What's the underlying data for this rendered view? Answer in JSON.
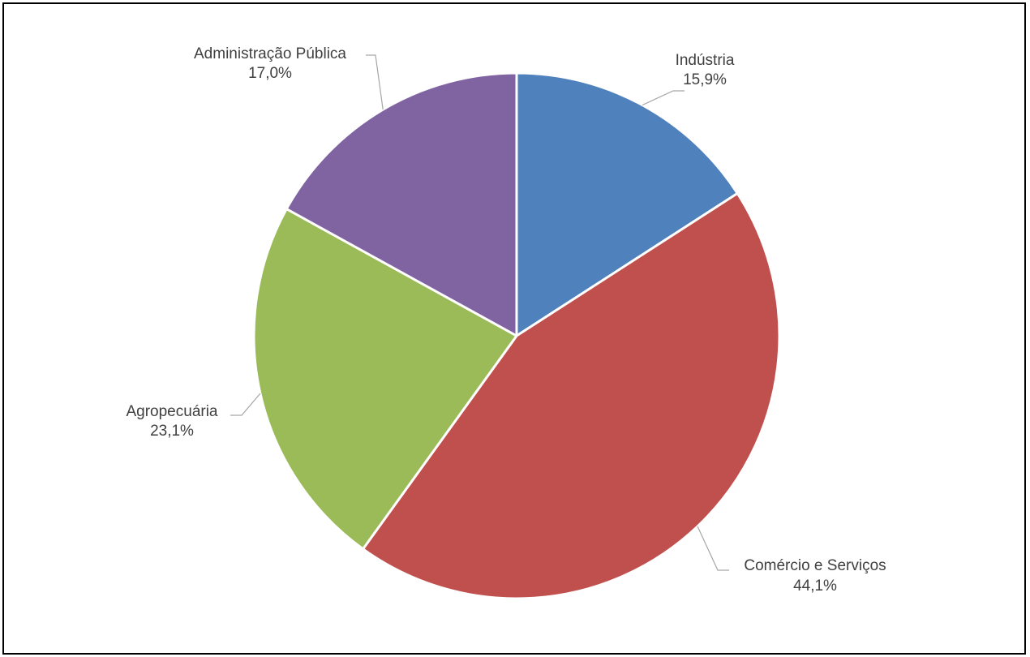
{
  "chart_data": {
    "type": "pie",
    "start_angle_deg": 0,
    "direction": "clockwise",
    "slices": [
      {
        "label": "Indústria",
        "value": 15.9,
        "value_label": "15,9%",
        "color": "#4f81bd"
      },
      {
        "label": "Comércio e Serviços",
        "value": 44.1,
        "value_label": "44,1%",
        "color": "#c0504d"
      },
      {
        "label": "Agropecuária",
        "value": 23.1,
        "value_label": "23,1%",
        "color": "#9bbb59"
      },
      {
        "label": "Administração Pública",
        "value": 17.0,
        "value_label": "17,0%",
        "color": "#8064a2"
      }
    ],
    "legend": "none",
    "label_style": "outside labels with leader lines"
  }
}
